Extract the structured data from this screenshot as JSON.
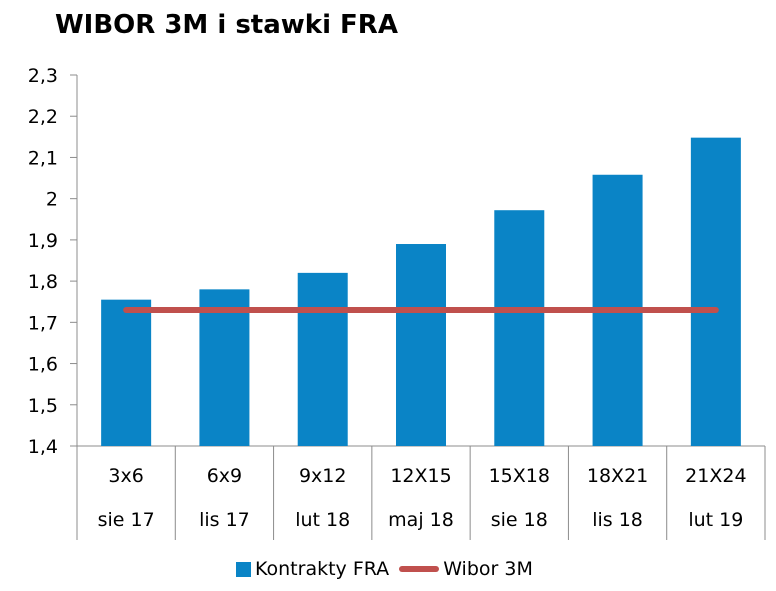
{
  "chart_data": {
    "type": "bar",
    "title": "WIBOR 3M i stawki FRA",
    "categories": [
      "3x6",
      "6x9",
      "9x12",
      "12X15",
      "15X18",
      "18X21",
      "21X24"
    ],
    "sub_categories": [
      "sie 17",
      "lis 17",
      "lut 18",
      "maj 18",
      "sie 18",
      "lis 18",
      "lut 19"
    ],
    "series": [
      {
        "name": "Kontrakty FRA",
        "type": "bar",
        "color": "#0a84c6",
        "values": [
          1.755,
          1.78,
          1.82,
          1.89,
          1.972,
          2.058,
          2.148
        ]
      },
      {
        "name": "Wibor 3M",
        "type": "line",
        "color": "#c0504d",
        "values": [
          1.73,
          1.73,
          1.73,
          1.73,
          1.73,
          1.73,
          1.73
        ]
      }
    ],
    "ylim": [
      1.4,
      2.3
    ],
    "yticks": [
      "1,4",
      "1,5",
      "1,6",
      "1,7",
      "1,8",
      "1,9",
      "2",
      "2,1",
      "2,2",
      "2,3"
    ],
    "grid": false,
    "legend": "bottom"
  }
}
